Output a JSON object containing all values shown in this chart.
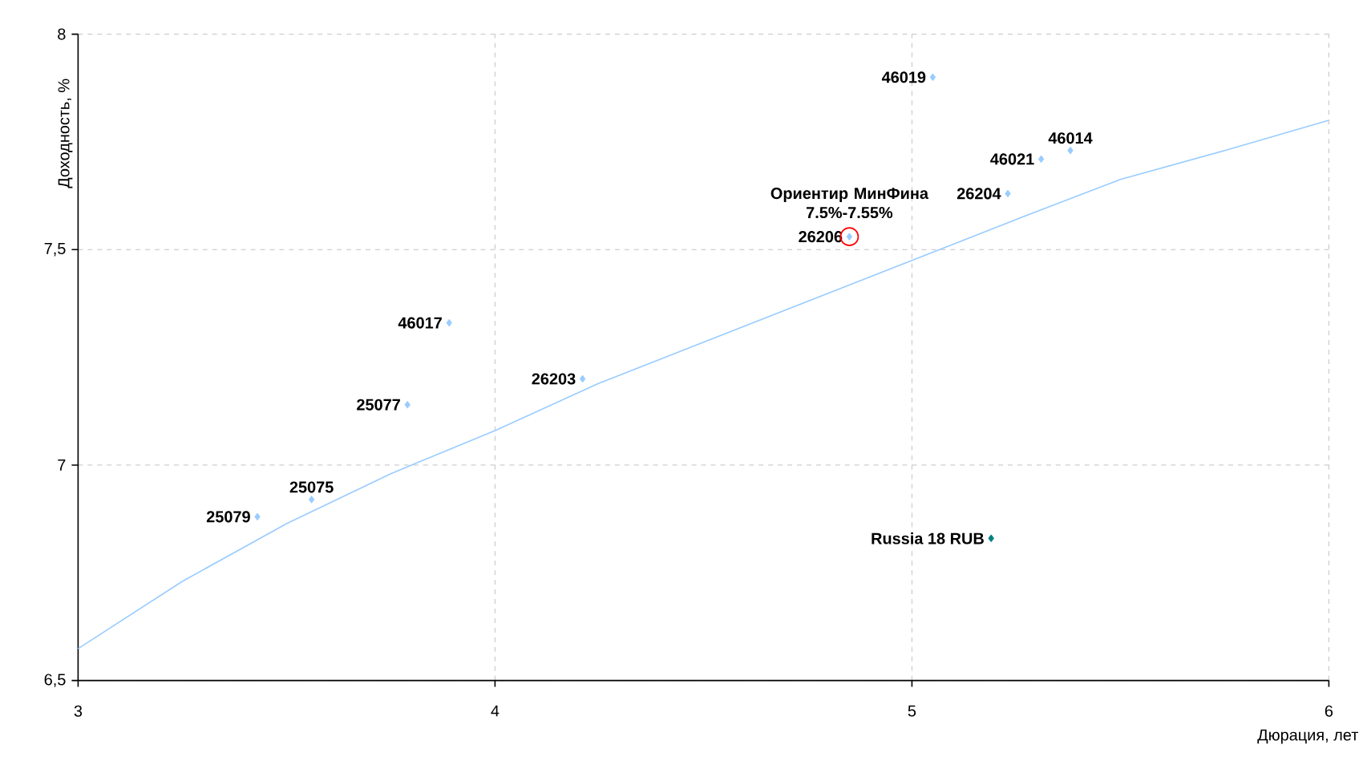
{
  "chart_data": {
    "type": "scatter",
    "xlabel": "Дюрация, лет",
    "ylabel": "Доходность, %",
    "xlim": [
      3,
      6
    ],
    "ylim": [
      6.5,
      8
    ],
    "xticks": [
      3,
      4,
      5,
      6
    ],
    "yticks": [
      {
        "value": 6.5,
        "label": "6,5"
      },
      7,
      {
        "value": 7.5,
        "label": "7,5"
      },
      8
    ],
    "grid": true,
    "marker": "diamond",
    "series": [
      {
        "name": "25079",
        "color": "#99ccff",
        "x": [
          3.43
        ],
        "values": [
          6.88
        ]
      },
      {
        "name": "25075",
        "color": "#99ccff",
        "x": [
          3.56
        ],
        "values": [
          6.92
        ]
      },
      {
        "name": "25077",
        "color": "#99ccff",
        "x": [
          3.79
        ],
        "values": [
          7.14
        ]
      },
      {
        "name": "46017",
        "color": "#99ccff",
        "x": [
          3.89
        ],
        "values": [
          7.33
        ]
      },
      {
        "name": "26203",
        "color": "#99ccff",
        "x": [
          4.21
        ],
        "values": [
          7.2
        ]
      },
      {
        "name": "26206",
        "color": "#99ccff",
        "x": [
          4.85
        ],
        "values": [
          7.53
        ]
      },
      {
        "name": "46019",
        "color": "#99ccff",
        "x": [
          5.05
        ],
        "values": [
          7.9
        ]
      },
      {
        "name": "26204",
        "color": "#99ccff",
        "x": [
          5.23
        ],
        "values": [
          7.63
        ]
      },
      {
        "name": "46021",
        "color": "#99ccff",
        "x": [
          5.31
        ],
        "values": [
          7.71
        ]
      },
      {
        "name": "46014",
        "color": "#99ccff",
        "x": [
          5.38
        ],
        "values": [
          7.73
        ]
      },
      {
        "name": "Russia 18 RUB",
        "color": "#008080",
        "x": [
          5.19
        ],
        "values": [
          6.83
        ]
      },
      {
        "type": "line",
        "color": "#99ccff",
        "marker": "none",
        "x": [
          3,
          3.25,
          3.5,
          3.75,
          4,
          4.25,
          4.5,
          4.75,
          5,
          5.25,
          5.5,
          5.75,
          6
        ],
        "values": [
          6.574,
          6.73,
          6.864,
          6.98,
          7.08,
          7.19,
          7.285,
          7.38,
          7.475,
          7.57,
          7.663,
          7.73,
          7.8
        ]
      }
    ],
    "annotations": [
      {
        "text": "Ориентир МинФина 7.5%-7.55%",
        "x": 4.85,
        "y": 7.53
      }
    ]
  }
}
